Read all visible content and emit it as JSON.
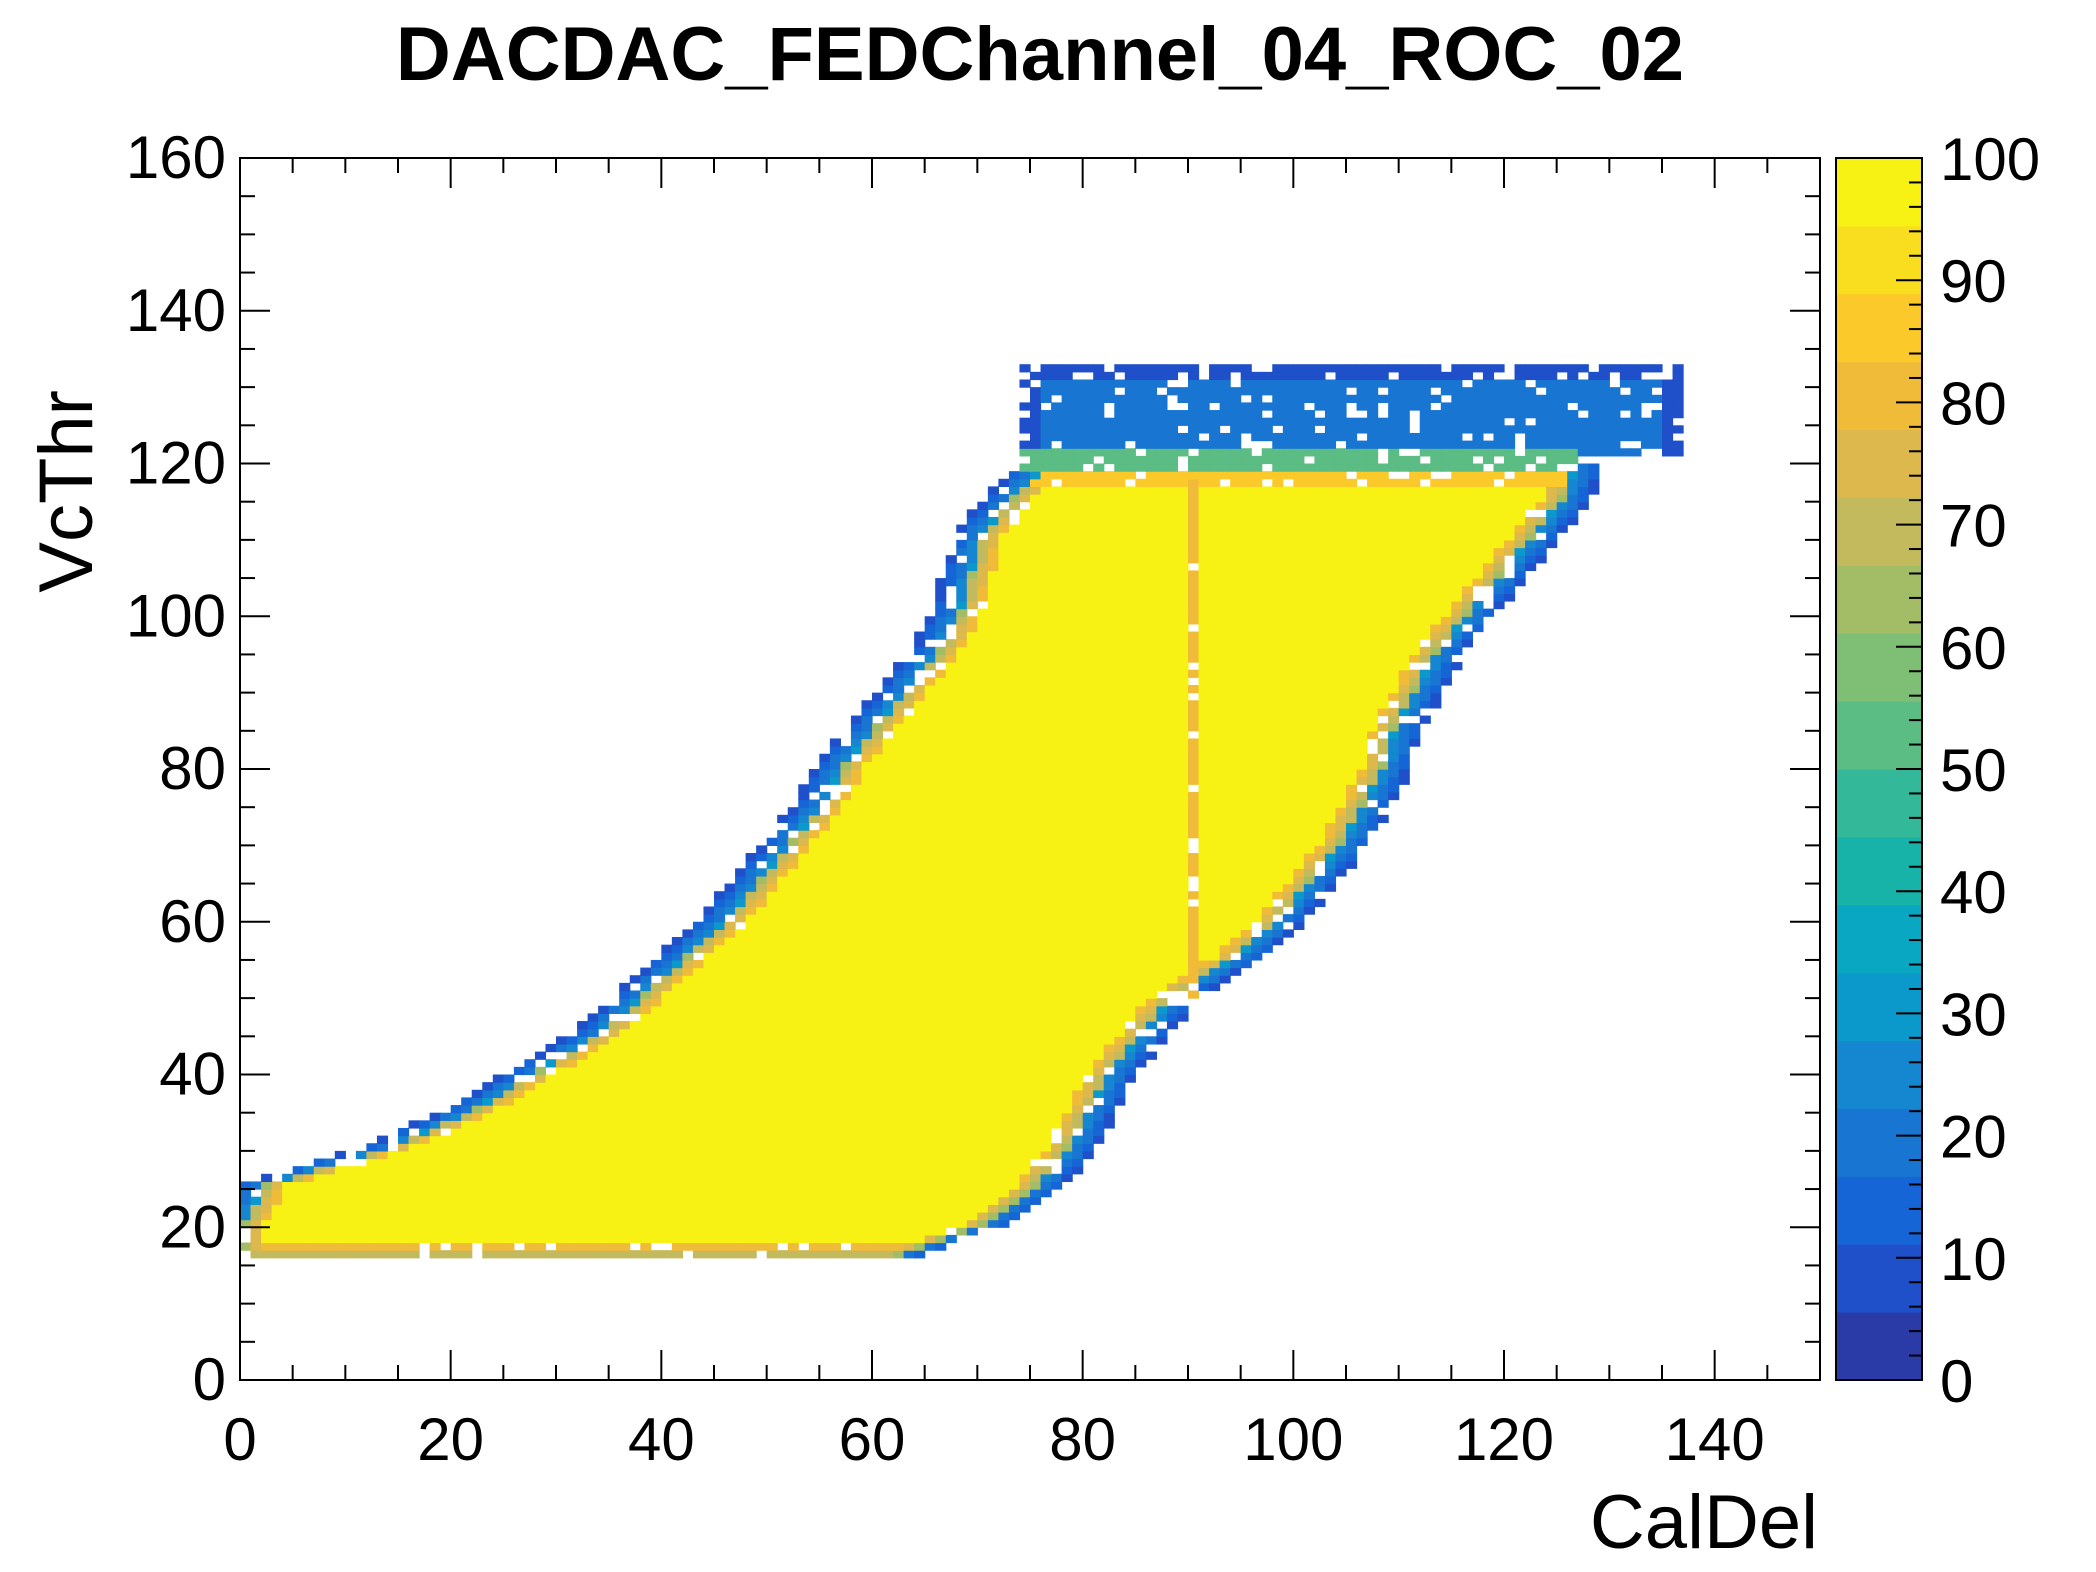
{
  "chart_data": {
    "type": "heatmap",
    "title": "DACDAC_FEDChannel_04_ROC_02",
    "xlabel": "CalDel",
    "ylabel": "VcThr",
    "xlim": [
      0,
      150
    ],
    "ylim": [
      0,
      160
    ],
    "x_ticks": [
      "0",
      "20",
      "40",
      "60",
      "80",
      "100",
      "120",
      "140"
    ],
    "y_ticks": [
      "0",
      "20",
      "40",
      "60",
      "80",
      "100",
      "120",
      "140",
      "160"
    ],
    "colorbar": {
      "range": [
        0,
        100
      ],
      "ticks": [
        "0",
        "10",
        "20",
        "30",
        "40",
        "50",
        "60",
        "70",
        "80",
        "90",
        "100"
      ],
      "colors": [
        "#2a3aa6",
        "#1f4fc9",
        "#1565d6",
        "#1876d2",
        "#1487d0",
        "#0b99cc",
        "#0aa7c2",
        "#17b2a8",
        "#33b899",
        "#5bbc84",
        "#7fbf75",
        "#a3bd67",
        "#c3ba5d",
        "#dcb84d",
        "#f1bb3a",
        "#fcc92a",
        "#f8de1f",
        "#f7f213"
      ]
    },
    "efficiency_region": {
      "description_values": "rows of VcThr (y) with CalDel range [x_min, x_max] of high efficiency",
      "rows": [
        {
          "y": 16,
          "x": [
            0,
            62
          ]
        },
        {
          "y": 20,
          "x": [
            0,
            70
          ]
        },
        {
          "y": 25,
          "x": [
            2,
            75
          ]
        },
        {
          "y": 30,
          "x": [
            14,
            78
          ]
        },
        {
          "y": 35,
          "x": [
            22,
            80
          ]
        },
        {
          "y": 40,
          "x": [
            28,
            82
          ]
        },
        {
          "y": 45,
          "x": [
            34,
            85
          ]
        },
        {
          "y": 50,
          "x": [
            38,
            88
          ]
        },
        {
          "y": 55,
          "x": [
            42,
            94
          ]
        },
        {
          "y": 60,
          "x": [
            46,
            98
          ]
        },
        {
          "y": 65,
          "x": [
            49,
            101
          ]
        },
        {
          "y": 70,
          "x": [
            52,
            104
          ]
        },
        {
          "y": 75,
          "x": [
            55,
            106
          ]
        },
        {
          "y": 80,
          "x": [
            57,
            108
          ]
        },
        {
          "y": 85,
          "x": [
            60,
            109
          ]
        },
        {
          "y": 90,
          "x": [
            63,
            111
          ]
        },
        {
          "y": 95,
          "x": [
            66,
            113
          ]
        },
        {
          "y": 100,
          "x": [
            68,
            116
          ]
        },
        {
          "y": 105,
          "x": [
            69,
            119
          ]
        },
        {
          "y": 110,
          "x": [
            70,
            122
          ]
        },
        {
          "y": 115,
          "x": [
            73,
            125
          ]
        },
        {
          "y": 119,
          "x": [
            76,
            126
          ]
        }
      ],
      "plateau": {
        "y": [
          121,
          132
        ],
        "x": [
          74,
          136
        ],
        "value": 18
      },
      "stripe_x": 90,
      "stripe_value": 80
    }
  }
}
